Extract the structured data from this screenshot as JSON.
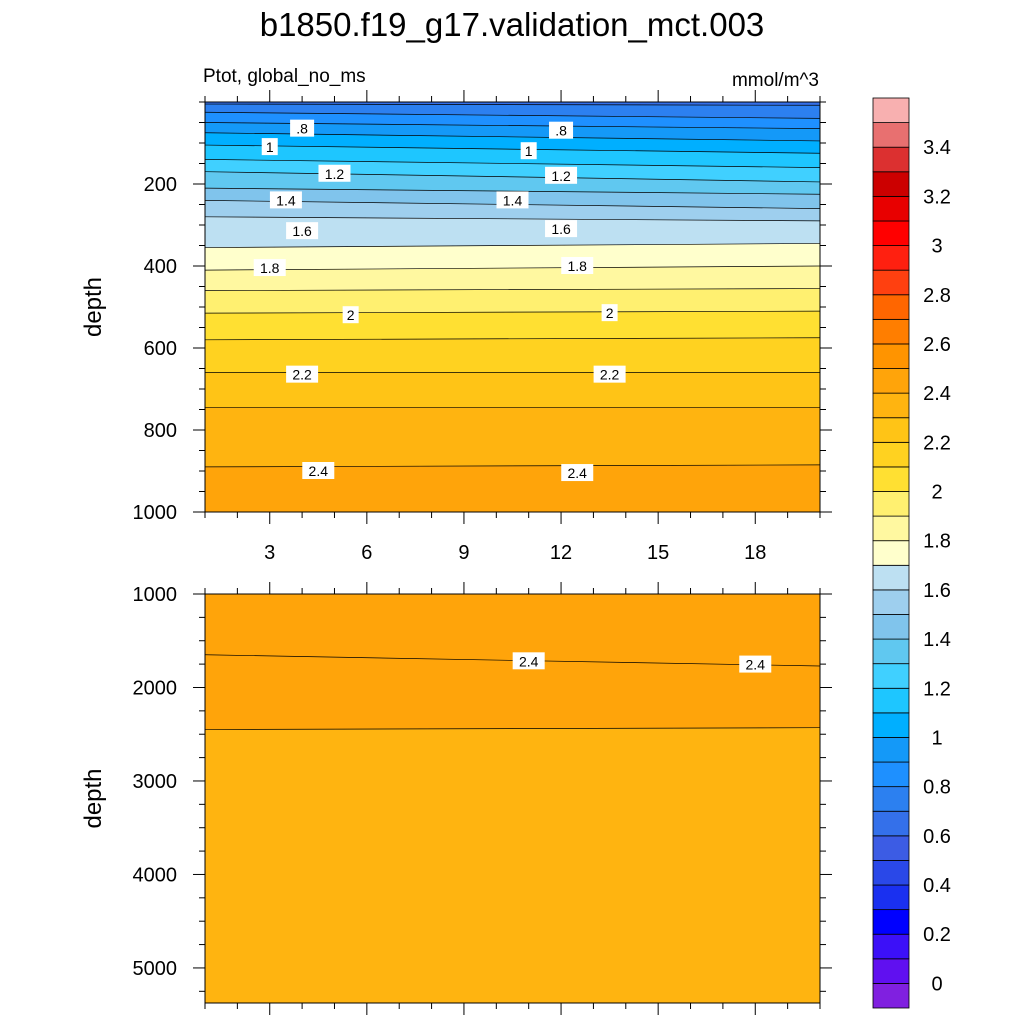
{
  "title": "b1850.f19_g17.validation_mct.003",
  "left_subtitle": "Ptot, global_no_ms",
  "right_subtitle": "mmol/m^3",
  "chart_data": [
    {
      "type": "contour",
      "panel": "upper",
      "ylabel": "depth",
      "xlim": [
        1,
        20
      ],
      "ylim": [
        1000,
        0
      ],
      "y_reversed": true,
      "xticks": [
        3,
        6,
        9,
        12,
        15,
        18
      ],
      "yticks": [
        200,
        400,
        600,
        800,
        1000
      ],
      "x": [
        1,
        20
      ],
      "contour_lines": [
        {
          "level": 0.7,
          "y": [
            5,
            8
          ]
        },
        {
          "level": 0.8,
          "y": [
            25,
            40
          ]
        },
        {
          "level": 0.9,
          "y": [
            50,
            65
          ]
        },
        {
          "level": 1.0,
          "y": [
            75,
            95
          ]
        },
        {
          "level": 1.1,
          "y": [
            105,
            125
          ]
        },
        {
          "level": 1.2,
          "y": [
            140,
            160
          ]
        },
        {
          "level": 1.3,
          "y": [
            170,
            195
          ]
        },
        {
          "level": 1.4,
          "y": [
            210,
            225
          ]
        },
        {
          "level": 1.5,
          "y": [
            240,
            260
          ]
        },
        {
          "level": 1.6,
          "y": [
            280,
            290
          ]
        },
        {
          "level": 1.7,
          "y": [
            355,
            345
          ]
        },
        {
          "level": 1.8,
          "y": [
            410,
            400
          ]
        },
        {
          "level": 1.9,
          "y": [
            460,
            455
          ]
        },
        {
          "level": 2.0,
          "y": [
            515,
            510
          ]
        },
        {
          "level": 2.1,
          "y": [
            580,
            575
          ]
        },
        {
          "level": 2.2,
          "y": [
            660,
            660
          ]
        },
        {
          "level": 2.3,
          "y": [
            745,
            745
          ]
        },
        {
          "level": 2.4,
          "y": [
            890,
            885
          ]
        }
      ],
      "line_labels": [
        {
          "text": ".8",
          "x": 4.0,
          "y": 65
        },
        {
          "text": ".8",
          "x": 12.0,
          "y": 70
        },
        {
          "text": "1",
          "x": 3.0,
          "y": 110
        },
        {
          "text": "1",
          "x": 11.0,
          "y": 120
        },
        {
          "text": "1.2",
          "x": 5.0,
          "y": 175
        },
        {
          "text": "1.2",
          "x": 12.0,
          "y": 180
        },
        {
          "text": "1.4",
          "x": 3.5,
          "y": 240
        },
        {
          "text": "1.4",
          "x": 10.5,
          "y": 240
        },
        {
          "text": "1.6",
          "x": 4.0,
          "y": 315
        },
        {
          "text": "1.6",
          "x": 12.0,
          "y": 310
        },
        {
          "text": "1.8",
          "x": 3.0,
          "y": 405
        },
        {
          "text": "1.8",
          "x": 12.5,
          "y": 400
        },
        {
          "text": "2",
          "x": 5.5,
          "y": 520
        },
        {
          "text": "2",
          "x": 13.5,
          "y": 515
        },
        {
          "text": "2.2",
          "x": 4.0,
          "y": 665
        },
        {
          "text": "2.2",
          "x": 13.5,
          "y": 665
        },
        {
          "text": "2.4",
          "x": 4.5,
          "y": 900
        },
        {
          "text": "2.4",
          "x": 12.5,
          "y": 905
        }
      ]
    },
    {
      "type": "contour",
      "panel": "lower",
      "ylabel": "depth",
      "xlim": [
        1,
        20
      ],
      "ylim": [
        5375,
        1000
      ],
      "y_reversed": true,
      "xticks": [
        3,
        6,
        9,
        12,
        15,
        18
      ],
      "yticks": [
        1000,
        2000,
        3000,
        4000,
        5000
      ],
      "x": [
        1,
        20
      ],
      "background_level": 2.3,
      "contour_lines": [
        {
          "level": 2.5,
          "y": [
            1650,
            1770
          ]
        },
        {
          "level": 2.4,
          "y": [
            2450,
            2430
          ]
        }
      ],
      "line_labels": [
        {
          "text": "2.4",
          "x": 11.0,
          "y": 1720
        },
        {
          "text": "2.4",
          "x": 18.0,
          "y": 1755
        }
      ]
    }
  ],
  "colorbar": {
    "levels": [
      0.0,
      0.1,
      0.2,
      0.3,
      0.4,
      0.5,
      0.6,
      0.7,
      0.8,
      0.9,
      1.0,
      1.1,
      1.2,
      1.3,
      1.4,
      1.5,
      1.6,
      1.7,
      1.8,
      1.9,
      2.0,
      2.1,
      2.2,
      2.3,
      2.4,
      2.5,
      2.6,
      2.7,
      2.8,
      2.9,
      3.0,
      3.1,
      3.2,
      3.3,
      3.4,
      3.5
    ],
    "tick_labels": [
      "0",
      "0.2",
      "0.4",
      "0.6",
      "0.8",
      "1",
      "1.2",
      "1.4",
      "1.6",
      "1.8",
      "2",
      "2.2",
      "2.4",
      "2.6",
      "2.8",
      "3",
      "3.2",
      "3.4"
    ],
    "colors": [
      "#8020e0",
      "#6010f0",
      "#3c10f8",
      "#0000ff",
      "#1a30f0",
      "#2a48e8",
      "#3c5ce4",
      "#3470ea",
      "#2c80f0",
      "#1e90ff",
      "#1499f8",
      "#00afff",
      "#1ec6ff",
      "#40d0ff",
      "#60c8f0",
      "#80c4ec",
      "#9ecfee",
      "#bde0f2",
      "#ffffcc",
      "#fff8a0",
      "#fff070",
      "#ffe032",
      "#ffd220",
      "#ffc416",
      "#ffb410",
      "#ffa40a",
      "#ff9400",
      "#ff7e00",
      "#ff6600",
      "#ff4010",
      "#ff2010",
      "#ff0000",
      "#e80000",
      "#cc0000",
      "#dc3030",
      "#e87070",
      "#f8b0b0"
    ]
  }
}
